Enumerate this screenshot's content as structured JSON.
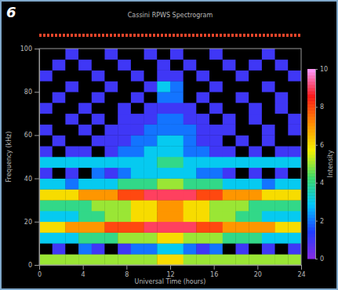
{
  "chart_data": {
    "type": "heatmap",
    "title": "Cassini RPWS Spectrogram",
    "panel": "6",
    "x_label": "Universal Time (hours)",
    "y_label": "Frequency (kHz)",
    "xlim": [
      0,
      24
    ],
    "xticks": [
      0,
      4,
      8,
      12,
      16,
      20,
      24
    ],
    "ylim": [
      0,
      100
    ],
    "yticks": [
      0,
      20,
      40,
      60,
      80,
      100
    ],
    "xbins": [
      0,
      1.2,
      2.4,
      3.6,
      4.8,
      6,
      7.2,
      8.4,
      9.6,
      10.8,
      12,
      13.2,
      14.4,
      15.6,
      16.8,
      18,
      19.2,
      20.4,
      21.6,
      22.8,
      24
    ],
    "ybins": [
      0,
      5,
      10,
      15,
      20,
      25,
      30,
      35,
      40,
      45,
      50,
      55,
      60,
      65,
      70,
      75,
      80,
      85,
      90,
      95,
      100
    ],
    "cells": [
      [
        5,
        5,
        5,
        5,
        5,
        5,
        5,
        5,
        5,
        6,
        6,
        5,
        5,
        5,
        5,
        5,
        5,
        5,
        5,
        5
      ],
      [
        0,
        1,
        0,
        2,
        1,
        0,
        1,
        2,
        2,
        3,
        3,
        2,
        1,
        2,
        0,
        1,
        0,
        1,
        0,
        1
      ],
      [
        3,
        3,
        3,
        4,
        4,
        4,
        5,
        5,
        5,
        6,
        6,
        5,
        5,
        5,
        4,
        4,
        4,
        3,
        3,
        3
      ],
      [
        6,
        6,
        7,
        7,
        7,
        8,
        8,
        8,
        9,
        9,
        9,
        9,
        8,
        8,
        7,
        7,
        7,
        7,
        6,
        6
      ],
      [
        3,
        3,
        3,
        4,
        4,
        5,
        5,
        6,
        6,
        7,
        7,
        6,
        6,
        5,
        5,
        4,
        4,
        3,
        3,
        3
      ],
      [
        4,
        4,
        4,
        4,
        5,
        5,
        5,
        6,
        6,
        7,
        7,
        6,
        6,
        5,
        5,
        5,
        4,
        4,
        4,
        4
      ],
      [
        6,
        6,
        6,
        7,
        7,
        7,
        8,
        8,
        9,
        9,
        9,
        9,
        8,
        8,
        7,
        7,
        7,
        6,
        6,
        6
      ],
      [
        3,
        3,
        2,
        3,
        3,
        3,
        4,
        4,
        4,
        5,
        5,
        4,
        4,
        4,
        3,
        3,
        3,
        2,
        3,
        3
      ],
      [
        1,
        0,
        1,
        0,
        2,
        1,
        2,
        3,
        3,
        3,
        3,
        3,
        2,
        2,
        1,
        0,
        1,
        0,
        1,
        0
      ],
      [
        3,
        3,
        3,
        3,
        3,
        3,
        3,
        3,
        3,
        4,
        4,
        3,
        3,
        3,
        3,
        3,
        3,
        3,
        3,
        3
      ],
      [
        1,
        0,
        1,
        1,
        0,
        1,
        2,
        2,
        3,
        3,
        3,
        2,
        2,
        1,
        1,
        0,
        1,
        0,
        1,
        1
      ],
      [
        0,
        1,
        0,
        0,
        1,
        1,
        1,
        2,
        2,
        3,
        3,
        2,
        1,
        1,
        0,
        1,
        0,
        1,
        0,
        0
      ],
      [
        1,
        0,
        0,
        1,
        0,
        1,
        1,
        1,
        2,
        2,
        2,
        2,
        1,
        1,
        1,
        0,
        0,
        1,
        0,
        1
      ],
      [
        0,
        0,
        1,
        0,
        1,
        0,
        1,
        1,
        1,
        2,
        2,
        1,
        1,
        0,
        1,
        0,
        1,
        0,
        0,
        1
      ],
      [
        1,
        0,
        0,
        1,
        0,
        0,
        1,
        0,
        1,
        1,
        1,
        1,
        0,
        1,
        0,
        0,
        1,
        0,
        1,
        0
      ],
      [
        0,
        1,
        0,
        0,
        1,
        0,
        0,
        1,
        0,
        2,
        2,
        0,
        1,
        0,
        0,
        1,
        0,
        0,
        1,
        0
      ],
      [
        0,
        0,
        1,
        0,
        0,
        1,
        0,
        0,
        1,
        3,
        2,
        0,
        0,
        1,
        0,
        0,
        0,
        1,
        0,
        0
      ],
      [
        1,
        0,
        0,
        0,
        1,
        0,
        0,
        1,
        0,
        1,
        1,
        0,
        1,
        0,
        0,
        1,
        0,
        0,
        0,
        1
      ],
      [
        0,
        1,
        0,
        1,
        0,
        0,
        1,
        0,
        0,
        1,
        0,
        1,
        0,
        0,
        1,
        0,
        1,
        0,
        1,
        0
      ],
      [
        0,
        0,
        1,
        0,
        0,
        1,
        0,
        0,
        1,
        0,
        1,
        0,
        0,
        1,
        0,
        0,
        0,
        1,
        0,
        0
      ]
    ],
    "colorbar": {
      "label": "Intensity",
      "range": [
        0,
        10
      ],
      "ticks": [
        0,
        2,
        4,
        6,
        8,
        10
      ]
    }
  }
}
